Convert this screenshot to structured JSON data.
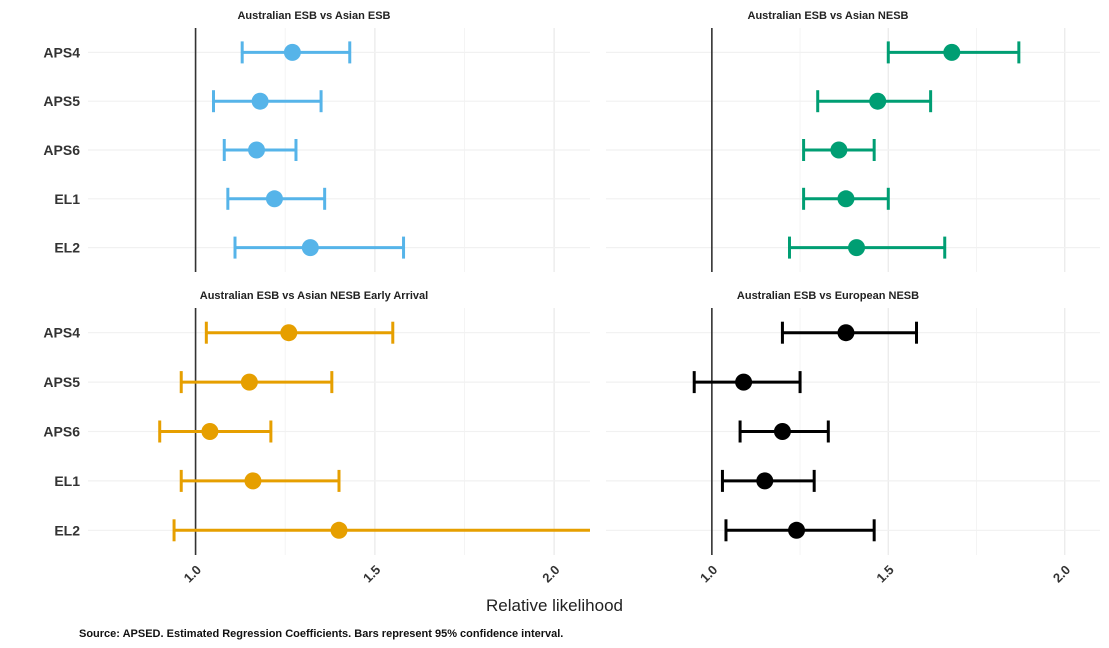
{
  "figure": {
    "xlabel": "Relative likelihood",
    "caption": "Source: APSED. Estimated Regression Coefficients. Bars represent 95% confidence interval."
  },
  "chart_data": [
    {
      "type": "scatter",
      "title": "Australian ESB vs Asian ESB",
      "color": "#56B4E9",
      "xlim": [
        0.7,
        2.1
      ],
      "reference_line": 1.0,
      "xticks": [
        "1.0",
        "1.5",
        "2.0"
      ],
      "categories": [
        "APS4",
        "APS5",
        "APS6",
        "EL1",
        "EL2"
      ],
      "estimates": [
        1.27,
        1.18,
        1.17,
        1.22,
        1.32
      ],
      "lower": [
        1.13,
        1.05,
        1.08,
        1.09,
        1.11
      ],
      "upper": [
        1.43,
        1.35,
        1.28,
        1.36,
        1.58
      ]
    },
    {
      "type": "scatter",
      "title": "Australian ESB vs Asian NESB",
      "color": "#009E73",
      "xlim": [
        0.7,
        2.1
      ],
      "reference_line": 1.0,
      "xticks": [
        "1.0",
        "1.5",
        "2.0"
      ],
      "categories": [
        "APS4",
        "APS5",
        "APS6",
        "EL1",
        "EL2"
      ],
      "estimates": [
        1.68,
        1.47,
        1.36,
        1.38,
        1.41
      ],
      "lower": [
        1.5,
        1.3,
        1.26,
        1.26,
        1.22
      ],
      "upper": [
        1.87,
        1.62,
        1.46,
        1.5,
        1.66
      ]
    },
    {
      "type": "scatter",
      "title": "Australian ESB vs Asian NESB Early Arrival",
      "color": "#E69F00",
      "xlim": [
        0.7,
        2.1
      ],
      "reference_line": 1.0,
      "xticks": [
        "1.0",
        "1.5",
        "2.0"
      ],
      "categories": [
        "APS4",
        "APS5",
        "APS6",
        "EL1",
        "EL2"
      ],
      "estimates": [
        1.26,
        1.15,
        1.04,
        1.16,
        1.4
      ],
      "lower": [
        1.03,
        0.96,
        0.9,
        0.96,
        0.94
      ],
      "upper": [
        1.55,
        1.38,
        1.21,
        1.4,
        2.1
      ]
    },
    {
      "type": "scatter",
      "title": "Australian ESB vs European NESB",
      "color": "#000000",
      "xlim": [
        0.7,
        2.1
      ],
      "reference_line": 1.0,
      "xticks": [
        "1.0",
        "1.5",
        "2.0"
      ],
      "categories": [
        "APS4",
        "APS5",
        "APS6",
        "EL1",
        "EL2"
      ],
      "estimates": [
        1.38,
        1.09,
        1.2,
        1.15,
        1.24
      ],
      "lower": [
        1.2,
        0.95,
        1.08,
        1.03,
        1.04
      ],
      "upper": [
        1.58,
        1.25,
        1.33,
        1.29,
        1.46
      ]
    }
  ]
}
